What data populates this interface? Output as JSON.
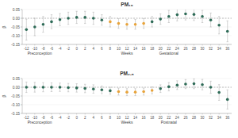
{
  "chart_data": [
    {
      "type": "scatter",
      "title": "PM₁₀",
      "x_label": "Weeks",
      "y_label": "β",
      "annotations": [
        "Preconception",
        "Gestational"
      ],
      "x": [
        -12,
        -10,
        -8,
        -6,
        -4,
        -2,
        0,
        2,
        4,
        6,
        8,
        10,
        12,
        14,
        16,
        18,
        20,
        22,
        24,
        26,
        28,
        30,
        32,
        34,
        36
      ],
      "values": [
        -0.065,
        -0.05,
        -0.035,
        -0.02,
        -0.008,
        0.0,
        0.005,
        0.005,
        0.0,
        -0.01,
        -0.02,
        -0.03,
        -0.035,
        -0.035,
        -0.03,
        -0.02,
        -0.005,
        0.01,
        0.02,
        0.025,
        0.022,
        0.01,
        -0.01,
        -0.04,
        -0.075
      ],
      "errors": [
        0.06,
        0.05,
        0.045,
        0.04,
        0.035,
        0.035,
        0.035,
        0.035,
        0.035,
        0.03,
        0.03,
        0.028,
        0.028,
        0.028,
        0.028,
        0.03,
        0.03,
        0.035,
        0.035,
        0.035,
        0.035,
        0.035,
        0.04,
        0.05,
        0.06
      ],
      "colors": [
        "#2e6b57",
        "#2e6b57",
        "#2e6b57",
        "#2e6b57",
        "#2e6b57",
        "#2e6b57",
        "#2e6b57",
        "#2e6b57",
        "#2e6b57",
        "#2e6b57",
        "#e8a33a",
        "#e8a33a",
        "#e8a33a",
        "#e8a33a",
        "#e8a33a",
        "#2e6b57",
        "#2e6b57",
        "#2e6b57",
        "#2e6b57",
        "#2e6b57",
        "#2e6b57",
        "#2e6b57",
        "#2e6b57",
        "#2e6b57",
        "#2e6b57"
      ],
      "xlim": [
        -13,
        37
      ],
      "ylim": [
        -0.15,
        0.05
      ],
      "xticks": [
        -12,
        -10,
        -8,
        -6,
        -4,
        -2,
        0,
        2,
        4,
        6,
        8,
        10,
        12,
        14,
        16,
        18,
        20,
        22,
        24,
        26,
        28,
        30,
        32,
        34,
        36
      ],
      "yticks": [
        0.05,
        {
          "value": 0,
          "label": "0.00"
        },
        -0.05,
        {
          "value": -0.1,
          "label": "-0.10"
        },
        -0.15
      ],
      "grid": true
    },
    {
      "type": "scatter",
      "title": "PM₂.₅",
      "x_label": "Weeks",
      "y_label": "β",
      "annotations": [
        "Preconception",
        "Postnatal"
      ],
      "x": [
        -12,
        -10,
        -8,
        -6,
        -4,
        -2,
        0,
        2,
        4,
        6,
        8,
        10,
        12,
        14,
        16,
        18,
        20,
        22,
        24,
        26,
        28,
        30,
        32,
        34,
        36
      ],
      "values": [
        0.0,
        0.0,
        0.0,
        0.0,
        0.0,
        -0.002,
        -0.004,
        -0.007,
        -0.01,
        -0.015,
        -0.02,
        -0.025,
        -0.028,
        -0.028,
        -0.025,
        -0.018,
        -0.008,
        0.003,
        0.012,
        0.018,
        0.02,
        0.015,
        0.0,
        -0.03,
        -0.07
      ],
      "errors": [
        0.03,
        0.028,
        0.026,
        0.025,
        0.024,
        0.024,
        0.024,
        0.024,
        0.024,
        0.022,
        0.02,
        0.02,
        0.02,
        0.02,
        0.02,
        0.02,
        0.022,
        0.024,
        0.025,
        0.026,
        0.028,
        0.03,
        0.035,
        0.045,
        0.055
      ],
      "colors": [
        "#2e6b57",
        "#2e6b57",
        "#2e6b57",
        "#2e6b57",
        "#2e6b57",
        "#2e6b57",
        "#2e6b57",
        "#2e6b57",
        "#2e6b57",
        "#2e6b57",
        "#2e6b57",
        "#e8a33a",
        "#e8a33a",
        "#e8a33a",
        "#e8a33a",
        "#e8a33a",
        "#2e6b57",
        "#2e6b57",
        "#2e6b57",
        "#2e6b57",
        "#2e6b57",
        "#2e6b57",
        "#2e6b57",
        "#2e6b57",
        "#2e6b57"
      ],
      "xlim": [
        -13,
        37
      ],
      "ylim": [
        -0.15,
        0.05
      ],
      "xticks": [
        -12,
        -10,
        -8,
        -6,
        -4,
        -2,
        0,
        2,
        4,
        6,
        8,
        10,
        12,
        14,
        16,
        18,
        20,
        22,
        24,
        26,
        28,
        30,
        32,
        34,
        36
      ],
      "yticks": [
        0.05,
        {
          "value": 0,
          "label": "0.00"
        },
        -0.05,
        {
          "value": -0.1,
          "label": "-0.10"
        },
        -0.15
      ],
      "grid": true
    }
  ]
}
